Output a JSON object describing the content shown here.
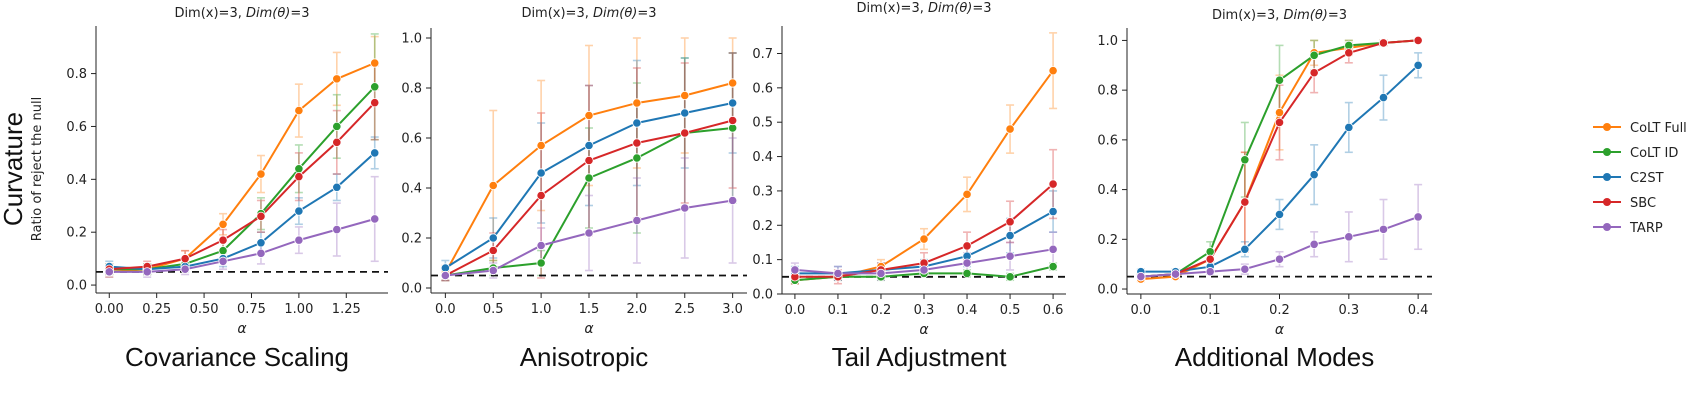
{
  "figure": {
    "row_label": "Curvature",
    "row_sublabel": "Ratio of reject the null",
    "legend": [
      {
        "name": "CoLT Full",
        "color": "#ff7f0e"
      },
      {
        "name": "CoLT ID",
        "color": "#2ca02c"
      },
      {
        "name": "C2ST",
        "color": "#1f77b4"
      },
      {
        "name": "SBC",
        "color": "#d62728"
      },
      {
        "name": "TARP",
        "color": "#9467bd"
      }
    ],
    "null_level": 0.05
  },
  "chart_data": [
    {
      "type": "line",
      "title_prefix": "Dim(x)=3, ",
      "title_italic": "Dim(θ)",
      "title_suffix": "=3",
      "caption": "Covariance Scaling",
      "xlabel": "α",
      "ylabel": "",
      "xlim": [
        -0.07,
        1.47
      ],
      "ylim": [
        -0.03,
        0.98
      ],
      "xticks": [
        0,
        0.25,
        0.5,
        0.75,
        1.0,
        1.25
      ],
      "xtick_labels": [
        "0.00",
        "0.25",
        "0.50",
        "0.75",
        "1.00",
        "1.25"
      ],
      "yticks": [
        0,
        0.2,
        0.4,
        0.6,
        0.8
      ],
      "ytick_labels": [
        "0.0",
        "0.2",
        "0.4",
        "0.6",
        "0.8"
      ],
      "x": [
        0,
        0.2,
        0.4,
        0.6,
        0.8,
        1.0,
        1.2,
        1.4
      ],
      "series": [
        {
          "name": "CoLT Full",
          "color": "#ff7f0e",
          "values": [
            0.05,
            0.06,
            0.1,
            0.23,
            0.42,
            0.66,
            0.78,
            0.84
          ],
          "err": [
            0.02,
            0.02,
            0.03,
            0.04,
            0.07,
            0.1,
            0.1,
            0.1
          ]
        },
        {
          "name": "CoLT ID",
          "color": "#2ca02c",
          "values": [
            0.06,
            0.06,
            0.08,
            0.13,
            0.27,
            0.44,
            0.6,
            0.75
          ],
          "err": [
            0.02,
            0.02,
            0.02,
            0.04,
            0.06,
            0.09,
            0.12,
            0.2
          ]
        },
        {
          "name": "C2ST",
          "color": "#1f77b4",
          "values": [
            0.07,
            0.06,
            0.07,
            0.1,
            0.16,
            0.28,
            0.37,
            0.5
          ],
          "err": [
            0.02,
            0.02,
            0.02,
            0.03,
            0.04,
            0.05,
            0.05,
            0.06
          ]
        },
        {
          "name": "SBC",
          "color": "#d62728",
          "values": [
            0.06,
            0.07,
            0.1,
            0.17,
            0.26,
            0.41,
            0.54,
            0.69
          ],
          "err": [
            0.02,
            0.02,
            0.03,
            0.04,
            0.06,
            0.09,
            0.12,
            0.14
          ]
        },
        {
          "name": "TARP",
          "color": "#9467bd",
          "values": [
            0.05,
            0.05,
            0.06,
            0.09,
            0.12,
            0.17,
            0.21,
            0.25
          ],
          "err": [
            0.02,
            0.02,
            0.02,
            0.03,
            0.04,
            0.05,
            0.1,
            0.16
          ]
        }
      ]
    },
    {
      "type": "line",
      "title_prefix": "Dim(x)=3, ",
      "title_italic": "Dim(θ)",
      "title_suffix": "=3",
      "caption": "Anisotropic",
      "xlabel": "α",
      "ylabel": "",
      "xlim": [
        -0.15,
        3.15
      ],
      "ylim": [
        -0.02,
        1.04
      ],
      "xticks": [
        0,
        0.5,
        1.0,
        1.5,
        2.0,
        2.5,
        3.0
      ],
      "xtick_labels": [
        "0.0",
        "0.5",
        "1.0",
        "1.5",
        "2.0",
        "2.5",
        "3.0"
      ],
      "yticks": [
        0,
        0.2,
        0.4,
        0.6,
        0.8,
        1.0
      ],
      "ytick_labels": [
        "0.0",
        "0.2",
        "0.4",
        "0.6",
        "0.8",
        "1.0"
      ],
      "x": [
        0,
        0.5,
        1.0,
        1.5,
        2.0,
        2.5,
        3.0
      ],
      "series": [
        {
          "name": "CoLT Full",
          "color": "#ff7f0e",
          "values": [
            0.06,
            0.41,
            0.57,
            0.69,
            0.74,
            0.77,
            0.82
          ],
          "err": [
            0.03,
            0.3,
            0.26,
            0.28,
            0.26,
            0.23,
            0.18
          ]
        },
        {
          "name": "CoLT ID",
          "color": "#2ca02c",
          "values": [
            0.05,
            0.08,
            0.1,
            0.44,
            0.52,
            0.62,
            0.64
          ],
          "err": [
            0.02,
            0.03,
            0.05,
            0.2,
            0.3,
            0.3,
            0.3
          ]
        },
        {
          "name": "C2ST",
          "color": "#1f77b4",
          "values": [
            0.08,
            0.2,
            0.46,
            0.57,
            0.66,
            0.7,
            0.74
          ],
          "err": [
            0.03,
            0.08,
            0.2,
            0.24,
            0.25,
            0.22,
            0.2
          ]
        },
        {
          "name": "SBC",
          "color": "#d62728",
          "values": [
            0.05,
            0.15,
            0.37,
            0.51,
            0.58,
            0.62,
            0.67
          ],
          "err": [
            0.02,
            0.07,
            0.33,
            0.3,
            0.3,
            0.28,
            0.27
          ]
        },
        {
          "name": "TARP",
          "color": "#9467bd",
          "values": [
            0.05,
            0.07,
            0.17,
            0.22,
            0.27,
            0.32,
            0.35
          ],
          "err": [
            0.02,
            0.03,
            0.07,
            0.15,
            0.17,
            0.2,
            0.25
          ]
        }
      ]
    },
    {
      "type": "line",
      "title_prefix": "Dim(x)=3, ",
      "title_italic": "Dim(θ)",
      "title_suffix": "=3",
      "caption": "Tail Adjustment",
      "xlabel": "α",
      "ylabel": "",
      "xlim": [
        -0.03,
        0.63
      ],
      "ylim": [
        0.0,
        0.78
      ],
      "xticks": [
        0,
        0.1,
        0.2,
        0.3,
        0.4,
        0.5,
        0.6
      ],
      "xtick_labels": [
        "0.0",
        "0.1",
        "0.2",
        "0.3",
        "0.4",
        "0.5",
        "0.6"
      ],
      "yticks": [
        0,
        0.1,
        0.2,
        0.3,
        0.4,
        0.5,
        0.6,
        0.7
      ],
      "ytick_labels": [
        "0.0",
        "0.1",
        "0.2",
        "0.3",
        "0.4",
        "0.5",
        "0.6",
        "0.7"
      ],
      "x": [
        0,
        0.1,
        0.2,
        0.3,
        0.4,
        0.5,
        0.6
      ],
      "series": [
        {
          "name": "CoLT Full",
          "color": "#ff7f0e",
          "values": [
            0.04,
            0.05,
            0.08,
            0.16,
            0.29,
            0.48,
            0.65
          ],
          "err": [
            0.01,
            0.01,
            0.02,
            0.03,
            0.05,
            0.07,
            0.11
          ]
        },
        {
          "name": "CoLT ID",
          "color": "#2ca02c",
          "values": [
            0.04,
            0.05,
            0.05,
            0.06,
            0.06,
            0.05,
            0.08
          ],
          "err": [
            0.01,
            0.01,
            0.01,
            0.01,
            0.01,
            0.01,
            0.01
          ]
        },
        {
          "name": "C2ST",
          "color": "#1f77b4",
          "values": [
            0.06,
            0.06,
            0.07,
            0.08,
            0.11,
            0.17,
            0.24
          ],
          "err": [
            0.02,
            0.02,
            0.02,
            0.02,
            0.03,
            0.05,
            0.06
          ]
        },
        {
          "name": "SBC",
          "color": "#d62728",
          "values": [
            0.05,
            0.05,
            0.07,
            0.09,
            0.14,
            0.21,
            0.32
          ],
          "err": [
            0.02,
            0.02,
            0.02,
            0.03,
            0.04,
            0.06,
            0.1
          ]
        },
        {
          "name": "TARP",
          "color": "#9467bd",
          "values": [
            0.07,
            0.06,
            0.06,
            0.07,
            0.09,
            0.11,
            0.13
          ],
          "err": [
            0.02,
            0.02,
            0.02,
            0.02,
            0.03,
            0.04,
            0.05
          ]
        }
      ]
    },
    {
      "type": "line",
      "title_prefix": "Dim(x)=3, ",
      "title_italic": "Dim(θ)",
      "title_suffix": "=3",
      "caption": "Additional Modes",
      "xlabel": "α",
      "ylabel": "",
      "xlim": [
        -0.02,
        0.42
      ],
      "ylim": [
        -0.02,
        1.05
      ],
      "xticks": [
        0,
        0.1,
        0.2,
        0.3,
        0.4
      ],
      "xtick_labels": [
        "0.0",
        "0.1",
        "0.2",
        "0.3",
        "0.4"
      ],
      "yticks": [
        0,
        0.2,
        0.4,
        0.6,
        0.8,
        1.0
      ],
      "ytick_labels": [
        "0.0",
        "0.2",
        "0.4",
        "0.6",
        "0.8",
        "1.0"
      ],
      "x": [
        0,
        0.05,
        0.1,
        0.15,
        0.2,
        0.25,
        0.3,
        0.35,
        0.4
      ],
      "series": [
        {
          "name": "CoLT Full",
          "color": "#ff7f0e",
          "values": [
            0.04,
            0.05,
            0.12,
            0.35,
            0.71,
            0.95,
            0.97,
            0.99,
            1.0
          ],
          "err": [
            0.01,
            0.01,
            0.03,
            0.2,
            0.15,
            0.05,
            0.03,
            0.01,
            0.0
          ]
        },
        {
          "name": "CoLT ID",
          "color": "#2ca02c",
          "values": [
            0.05,
            0.06,
            0.15,
            0.52,
            0.84,
            0.94,
            0.98,
            0.99,
            1.0
          ],
          "err": [
            0.01,
            0.01,
            0.04,
            0.15,
            0.14,
            0.06,
            0.02,
            0.01,
            0.0
          ]
        },
        {
          "name": "C2ST",
          "color": "#1f77b4",
          "values": [
            0.07,
            0.07,
            0.09,
            0.16,
            0.3,
            0.46,
            0.65,
            0.77,
            0.9
          ],
          "err": [
            0.01,
            0.01,
            0.02,
            0.03,
            0.06,
            0.12,
            0.1,
            0.09,
            0.05
          ]
        },
        {
          "name": "SBC",
          "color": "#d62728",
          "values": [
            0.05,
            0.06,
            0.12,
            0.35,
            0.67,
            0.87,
            0.95,
            0.99,
            1.0
          ],
          "err": [
            0.01,
            0.01,
            0.03,
            0.2,
            0.15,
            0.08,
            0.04,
            0.01,
            0.0
          ]
        },
        {
          "name": "TARP",
          "color": "#9467bd",
          "values": [
            0.05,
            0.06,
            0.07,
            0.08,
            0.12,
            0.18,
            0.21,
            0.24,
            0.29
          ],
          "err": [
            0.01,
            0.01,
            0.01,
            0.02,
            0.03,
            0.05,
            0.1,
            0.12,
            0.13
          ]
        }
      ]
    }
  ]
}
